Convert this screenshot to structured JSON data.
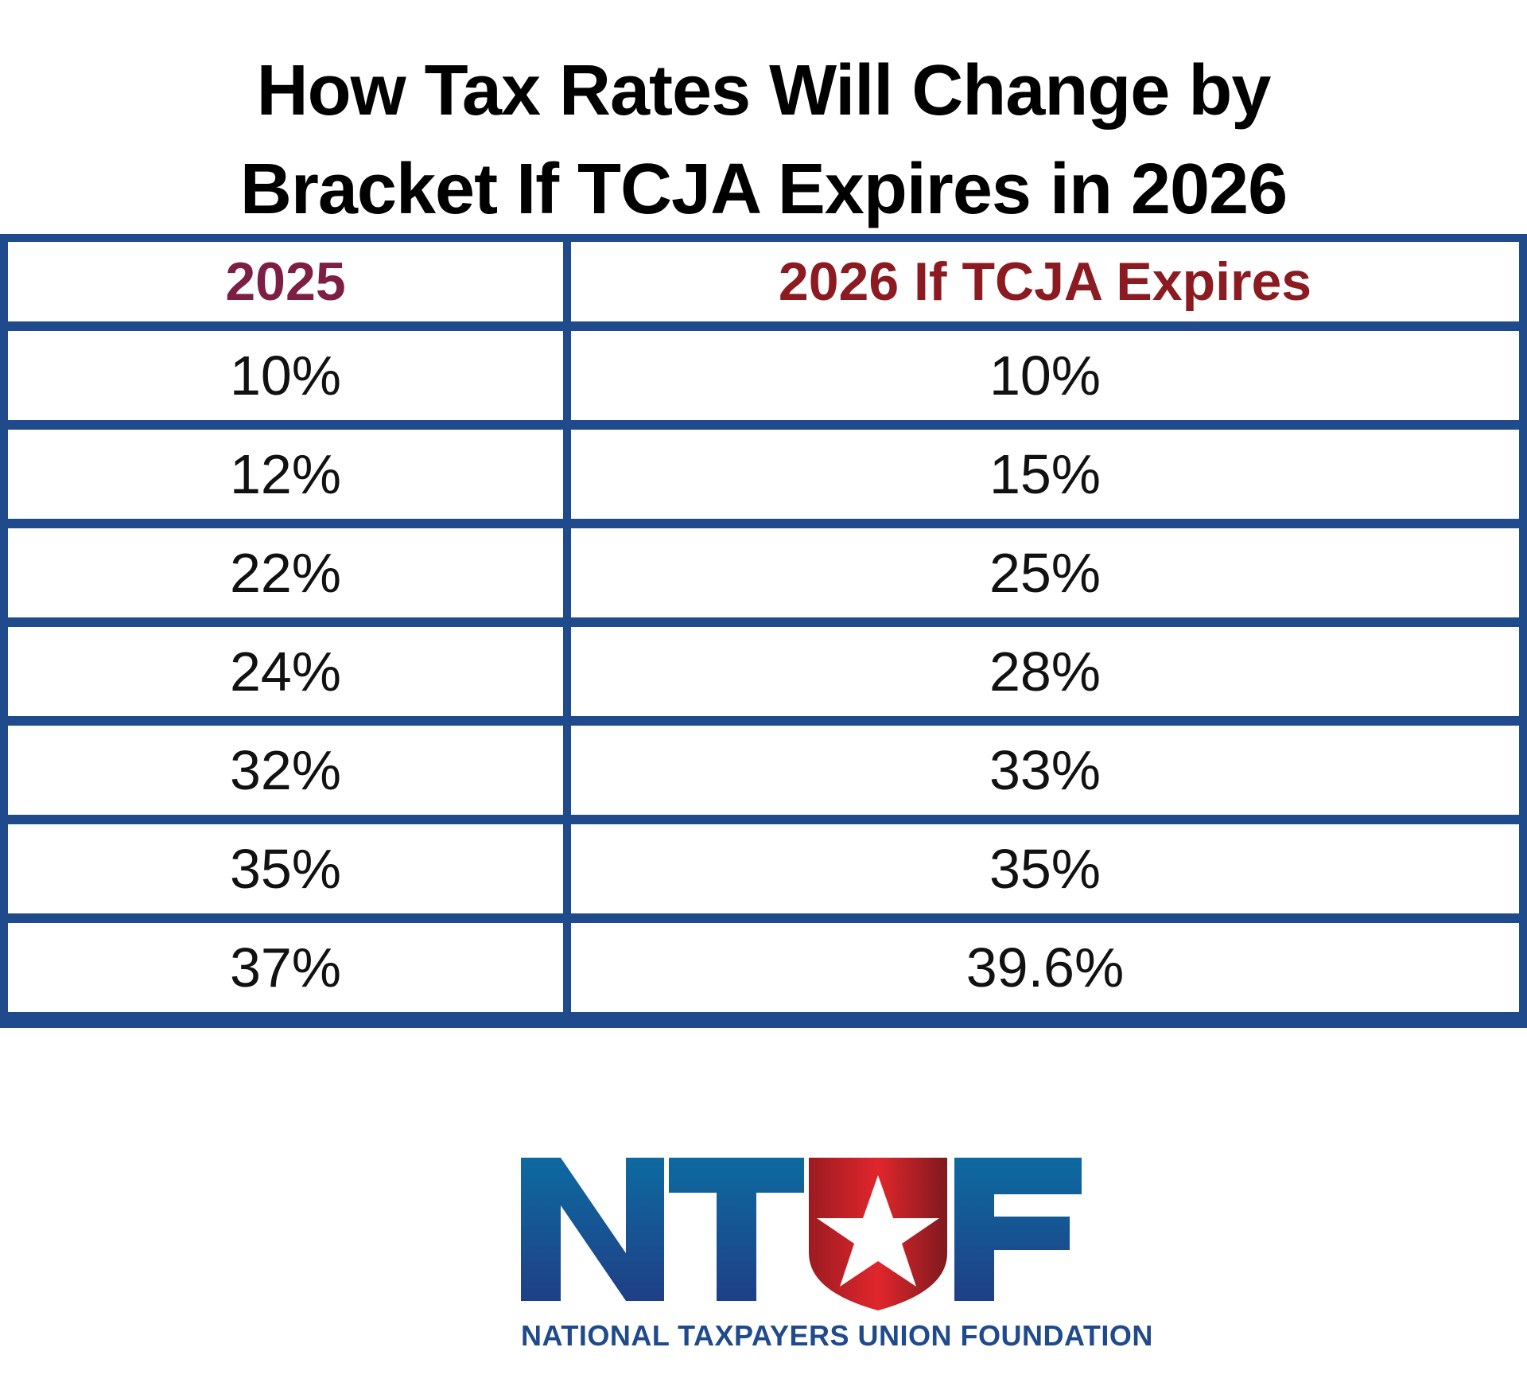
{
  "title": {
    "line1": "How Tax Rates Will Change by",
    "line2": "Bracket If TCJA Expires in 2026"
  },
  "chart_data": {
    "type": "table",
    "columns": [
      "2025",
      "2026 If TCJA Expires"
    ],
    "rows": [
      [
        "10%",
        "10%"
      ],
      [
        "12%",
        "15%"
      ],
      [
        "22%",
        "25%"
      ],
      [
        "24%",
        "28%"
      ],
      [
        "32%",
        "33%"
      ],
      [
        "35%",
        "35%"
      ],
      [
        "37%",
        "39.6%"
      ]
    ]
  },
  "colors": {
    "table_border": "#1f4a8c",
    "header_2025": "#7d1f45",
    "header_2026": "#8c1b21",
    "logo_blue": "#1f4a8c",
    "logo_red": "#c8242b"
  },
  "logo": {
    "mark": "NTUF",
    "org_name": "NATIONAL TAXPAYERS UNION FOUNDATION",
    "icon": "star-shield-icon"
  }
}
